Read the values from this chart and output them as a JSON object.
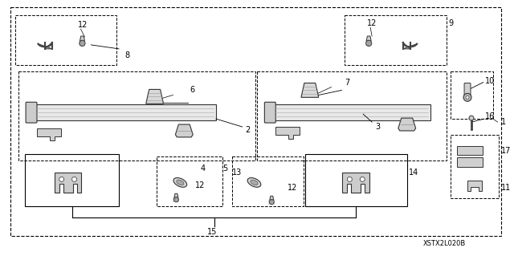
{
  "bg_color": "#ffffff",
  "watermark": "XSTX2L020B",
  "fig_w": 6.4,
  "fig_h": 3.19,
  "dpi": 100
}
